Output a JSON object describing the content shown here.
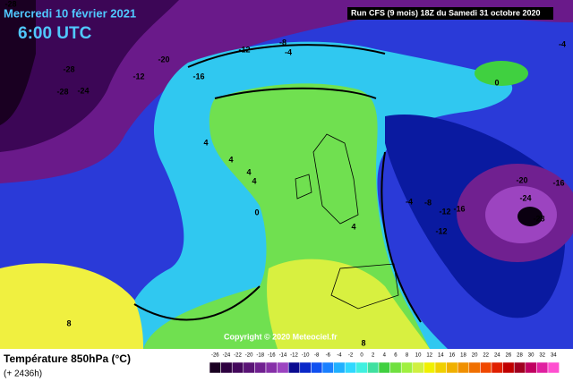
{
  "header": {
    "date": "Mercredi 10 février 2021",
    "time": "6:00 UTC",
    "run": "Run CFS (9 mois) 18Z du Samedi 31 octobre 2020",
    "copyright": "Copyright © 2020 Meteociel.fr"
  },
  "footer": {
    "parameter": "Température 850hPa (°C)",
    "lead_time": "(+ 2436h)"
  },
  "contour_labels": [
    "-28",
    "-20",
    "-12",
    "-28",
    "-24",
    "-28",
    "-16",
    "-12",
    "-8",
    "-4",
    "-4",
    "0",
    "4",
    "4",
    "4",
    "4",
    "0",
    "4",
    "-4",
    "-8",
    "-12",
    "-16",
    "-12",
    "-20",
    "-24",
    "-28",
    "-16",
    "8",
    "8"
  ],
  "colorbar": {
    "ticks": [
      "-26",
      "-24",
      "-22",
      "-20",
      "-18",
      "-16",
      "-14",
      "-12",
      "-10",
      "-8",
      "-6",
      "-4",
      "-2",
      "0",
      "2",
      "4",
      "6",
      "8",
      "10",
      "12",
      "14",
      "16",
      "18",
      "20",
      "22",
      "24",
      "26",
      "28",
      "30",
      "32",
      "34"
    ],
    "colors": [
      "#1a0022",
      "#2e0040",
      "#44085c",
      "#5a1476",
      "#702090",
      "#8630a8",
      "#9c44c0",
      "#0a0a90",
      "#0a28c8",
      "#1050f0",
      "#1a80ff",
      "#20b0ff",
      "#30d8ff",
      "#40f0e0",
      "#40e0a0",
      "#40d040",
      "#70e040",
      "#a0f040",
      "#d0f040",
      "#f0f000",
      "#f0d000",
      "#f0b000",
      "#f09000",
      "#f07000",
      "#f04800",
      "#e02000",
      "#c00000",
      "#a00020",
      "#c00060",
      "#e020a0",
      "#ff50d0"
    ]
  }
}
